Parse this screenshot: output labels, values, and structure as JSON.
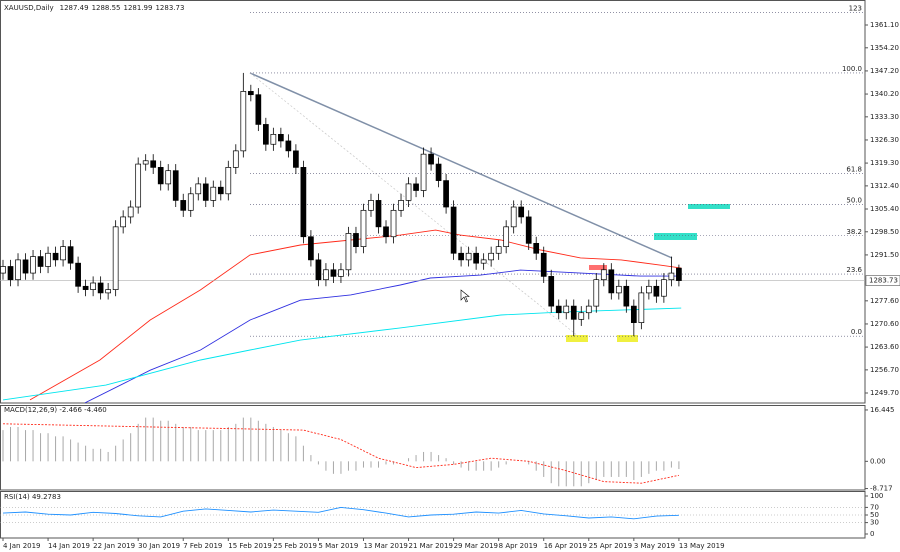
{
  "chart_data": [
    {
      "type": "candlestick",
      "title": "XAUUSD,Daily",
      "categories": [
        "4 Jan 2019",
        null,
        null,
        null,
        null,
        null,
        "14 Jan 2019",
        null,
        null,
        null,
        null,
        null,
        "22 Jan 2019",
        null,
        null,
        null,
        null,
        null,
        "30 Jan 2019",
        null,
        null,
        null,
        null,
        null,
        "7 Feb 2019",
        null,
        null,
        null,
        null,
        null,
        "15 Feb 2019",
        null,
        null,
        null,
        null,
        null,
        "25 Feb 2019",
        null,
        null,
        null,
        null,
        null,
        "5 Mar 2019",
        null,
        null,
        null,
        null,
        null,
        "13 Mar 2019",
        null,
        null,
        null,
        null,
        null,
        "21 Mar 2019",
        null,
        null,
        null,
        null,
        null,
        "29 Mar 2019",
        null,
        null,
        null,
        null,
        null,
        "8 Apr 2019",
        null,
        null,
        null,
        null,
        null,
        "16 Apr 2019",
        null,
        null,
        null,
        null,
        null,
        "25 Apr 2019",
        null,
        null,
        null,
        null,
        null,
        "3 May 2019",
        null,
        null,
        null,
        null,
        null,
        "13 May 2019"
      ],
      "open": [
        1286,
        1288,
        1284,
        1290,
        1286,
        1291,
        1288,
        1292,
        1290,
        1294,
        1289,
        1282,
        1281,
        1283,
        1280,
        1281,
        1300,
        1303,
        1306,
        1319,
        1320,
        1318,
        1313,
        1317,
        1308,
        1305,
        1310,
        1313,
        1308,
        1312,
        1310,
        1318,
        1323,
        1341,
        1340,
        1331,
        1325,
        1328,
        1326,
        1323,
        1318,
        1297,
        1290,
        1284,
        1287,
        1285,
        1287,
        1298,
        1294,
        1305,
        1308,
        1300,
        1297,
        1305,
        1308,
        1313,
        1311,
        1322,
        1319,
        1314,
        1306,
        1292,
        1290,
        1292,
        1289,
        1290,
        1292,
        1294,
        1300,
        1306,
        1303,
        1295,
        1292,
        1285,
        1276,
        1274,
        1276,
        1272,
        1274,
        1276,
        1284,
        1287,
        1280,
        1282,
        1276,
        1271,
        1280,
        1282,
        1279,
        1284,
        1287.49
      ],
      "high": [
        1290,
        1290,
        1292,
        1292,
        1293,
        1293,
        1294,
        1294,
        1296,
        1296,
        1291,
        1284,
        1285,
        1285,
        1283,
        1302,
        1305,
        1308,
        1321,
        1322,
        1322,
        1320,
        1319,
        1319,
        1310,
        1312,
        1315,
        1315,
        1314,
        1314,
        1320,
        1325,
        1346.6,
        1343,
        1342,
        1333,
        1330,
        1330,
        1328,
        1325,
        1320,
        1299,
        1292,
        1289,
        1289,
        1289,
        1300,
        1300,
        1307,
        1310,
        1310,
        1302,
        1307,
        1310,
        1315,
        1315,
        1324,
        1324,
        1321,
        1316,
        1308,
        1294,
        1294,
        1294,
        1292,
        1294,
        1296,
        1302,
        1308,
        1308,
        1305,
        1297,
        1294,
        1287,
        1278,
        1278,
        1278,
        1276,
        1278,
        1286,
        1289,
        1289,
        1284,
        1284,
        1278,
        1282,
        1284,
        1284,
        1286,
        1291,
        1288.55
      ],
      "low": [
        1284,
        1282,
        1282,
        1284,
        1284,
        1286,
        1286,
        1288,
        1288,
        1287,
        1280,
        1279,
        1279,
        1278,
        1278,
        1279,
        1298,
        1301,
        1304,
        1317,
        1316,
        1311,
        1311,
        1306,
        1303,
        1303,
        1308,
        1306,
        1306,
        1308,
        1308,
        1316,
        1321,
        1338,
        1329,
        1323,
        1323,
        1324,
        1321,
        1316,
        1295,
        1288,
        1282,
        1282,
        1283,
        1283,
        1285,
        1292,
        1292,
        1303,
        1298,
        1295,
        1295,
        1303,
        1306,
        1309,
        1309,
        1317,
        1312,
        1304,
        1290,
        1288,
        1288,
        1287,
        1287,
        1288,
        1290,
        1292,
        1298,
        1301,
        1293,
        1290,
        1283,
        1274,
        1272,
        1272,
        1266.9,
        1270,
        1272,
        1274,
        1282,
        1278,
        1278,
        1274,
        1266.9,
        1269,
        1278,
        1277,
        1277,
        1282,
        1281.99
      ],
      "close": [
        1288,
        1284,
        1290,
        1286,
        1291,
        1288,
        1292,
        1290,
        1294,
        1289,
        1282,
        1281,
        1283,
        1280,
        1281,
        1300,
        1303,
        1306,
        1319,
        1320,
        1318,
        1313,
        1317,
        1308,
        1305,
        1310,
        1313,
        1308,
        1312,
        1310,
        1318,
        1323,
        1341,
        1340,
        1331,
        1325,
        1328,
        1326,
        1323,
        1318,
        1297,
        1290,
        1284,
        1287,
        1285,
        1287,
        1298,
        1294,
        1305,
        1308,
        1300,
        1297,
        1305,
        1308,
        1313,
        1311,
        1322,
        1319,
        1314,
        1306,
        1292,
        1290,
        1292,
        1289,
        1290,
        1292,
        1294,
        1300,
        1306,
        1303,
        1295,
        1292,
        1285,
        1276,
        1274,
        1276,
        1272,
        1274,
        1276,
        1284,
        1287,
        1280,
        1282,
        1276,
        1271,
        1280,
        1282,
        1279,
        1284,
        1286,
        1283.73
      ],
      "lines": [
        {
          "color": "#ff2a1a",
          "x": [
            3.6,
            12.9,
            19.6,
            26.3,
            32.9,
            39.6,
            46.3,
            52.9,
            57.6,
            60.9,
            66.3,
            71.6,
            76.9,
            82.3,
            87.6,
            90.3
          ],
          "values": [
            1247.6,
            1259.7,
            1271.8,
            1280.9,
            1291.5,
            1294.5,
            1296.0,
            1297.5,
            1299.0,
            1297.5,
            1296.0,
            1293.0,
            1290.6,
            1290.0,
            1288.4,
            1287.5
          ]
        },
        {
          "color": "#3030e0",
          "x": [
            10.9,
            19.6,
            26.3,
            32.9,
            39.6,
            46.3,
            52.9,
            56.9,
            63.6,
            68.9,
            74.3,
            79.6,
            84.9,
            90.3
          ],
          "values": [
            1246.7,
            1256.6,
            1262.7,
            1271.8,
            1277.8,
            1279.4,
            1282.4,
            1284.5,
            1285.4,
            1286.9,
            1286.3,
            1285.7,
            1285.1,
            1285.1
          ]
        },
        {
          "color": "#00e5ee",
          "x": [
            0,
            13.7,
            26.3,
            32.9,
            39.6,
            52.9,
            66.3,
            74.3,
            82.3,
            90.3
          ],
          "values": [
            1247.6,
            1252.1,
            1259.7,
            1262.7,
            1265.7,
            1269.4,
            1273.3,
            1274.2,
            1274.8,
            1275.4
          ]
        }
      ],
      "fib_levels": [
        {
          "value": 1364.9,
          "label": "123"
        },
        {
          "value": 1346.6,
          "label": "100.0"
        },
        {
          "value": 1316.2,
          "label": "61.8"
        },
        {
          "value": 1306.75,
          "label": "50.0"
        },
        {
          "value": 1297.3,
          "label": "38.2"
        },
        {
          "value": 1285.7,
          "label": "23.6"
        },
        {
          "value": 1266.9,
          "label": "0.0"
        }
      ],
      "ylim": [
        1246.67,
        1368.67
      ],
      "yticks": [
        {
          "value": 1361.1,
          "label": "1361.10"
        },
        {
          "value": 1354.2,
          "label": "1354.20"
        },
        {
          "value": 1347.2,
          "label": "1347.20"
        },
        {
          "value": 1340.2,
          "label": "1340.20"
        },
        {
          "value": 1333.3,
          "label": "1333.30"
        },
        {
          "value": 1326.3,
          "label": "1326.30"
        },
        {
          "value": 1319.3,
          "label": "1319.30"
        },
        {
          "value": 1312.4,
          "label": "1312.40"
        },
        {
          "value": 1305.4,
          "label": "1305.40"
        },
        {
          "value": 1298.5,
          "label": "1298.50"
        },
        {
          "value": 1291.5,
          "label": "1291.50"
        },
        {
          "value": 1277.6,
          "label": "1277.60"
        },
        {
          "value": 1270.6,
          "label": "1270.60"
        },
        {
          "value": 1263.6,
          "label": "1263.60"
        },
        {
          "value": 1256.7,
          "label": "1256.70"
        },
        {
          "value": 1249.7,
          "label": "1249.70"
        }
      ]
    },
    {
      "type": "bar",
      "title": "MACD(12,26,9) -2.466 -4.460",
      "color": "#a8a8a8",
      "values": [
        10,
        11,
        11,
        10,
        10,
        9,
        9,
        8,
        8,
        7,
        6,
        5,
        4,
        4,
        3,
        5,
        7,
        9,
        12,
        14,
        14,
        13,
        13,
        12,
        11,
        11,
        10,
        10,
        10,
        10,
        11,
        12,
        14,
        14,
        13,
        12,
        11,
        10,
        9,
        8,
        5,
        2,
        -1,
        -3,
        -4,
        -4,
        -3,
        -3,
        -2,
        -2,
        -2,
        -1,
        -1,
        0,
        1,
        2,
        3,
        3,
        2,
        1,
        -1,
        -2,
        -3,
        -3,
        -3,
        -3,
        -2,
        -1,
        0,
        0,
        -1,
        -3,
        -5,
        -7,
        -8,
        -8,
        -8,
        -8,
        -7,
        -6,
        -5,
        -5,
        -5,
        -5,
        -6,
        -5,
        -4,
        -3,
        -3,
        -2,
        -2.466
      ],
      "signal": {
        "color": "#ff2a1a",
        "x": [
          0,
          20,
          40,
          45,
          50,
          55,
          60,
          65,
          70,
          75,
          80,
          85,
          90
        ],
        "values": [
          12,
          11,
          10,
          7,
          1,
          -2,
          -1,
          1,
          0,
          -3,
          -6.5,
          -7,
          -4.46
        ]
      },
      "ylim": [
        -9.18,
        17.71
      ],
      "yticks": [
        16.445,
        {
          "value": 0,
          "label": "0.00"
        },
        -8.717
      ]
    },
    {
      "type": "line",
      "title": "RSI(14) 49.2783",
      "color": "#1e90ff",
      "x": [
        0,
        3,
        6,
        9,
        12,
        15,
        18,
        21,
        24,
        27,
        30,
        33,
        36,
        39,
        42,
        45,
        48,
        51,
        54,
        57,
        60,
        63,
        66,
        69,
        72,
        75,
        78,
        81,
        84,
        87,
        90
      ],
      "values": [
        55,
        58,
        52,
        50,
        57,
        54,
        48,
        45,
        60,
        66,
        62,
        58,
        63,
        60,
        57,
        70,
        64,
        55,
        45,
        50,
        52,
        58,
        55,
        62,
        53,
        48,
        42,
        45,
        40,
        47,
        49.2783
      ],
      "ylim": [
        0,
        100
      ],
      "yticks": [
        100,
        70,
        50,
        30,
        0
      ]
    }
  ]
}
